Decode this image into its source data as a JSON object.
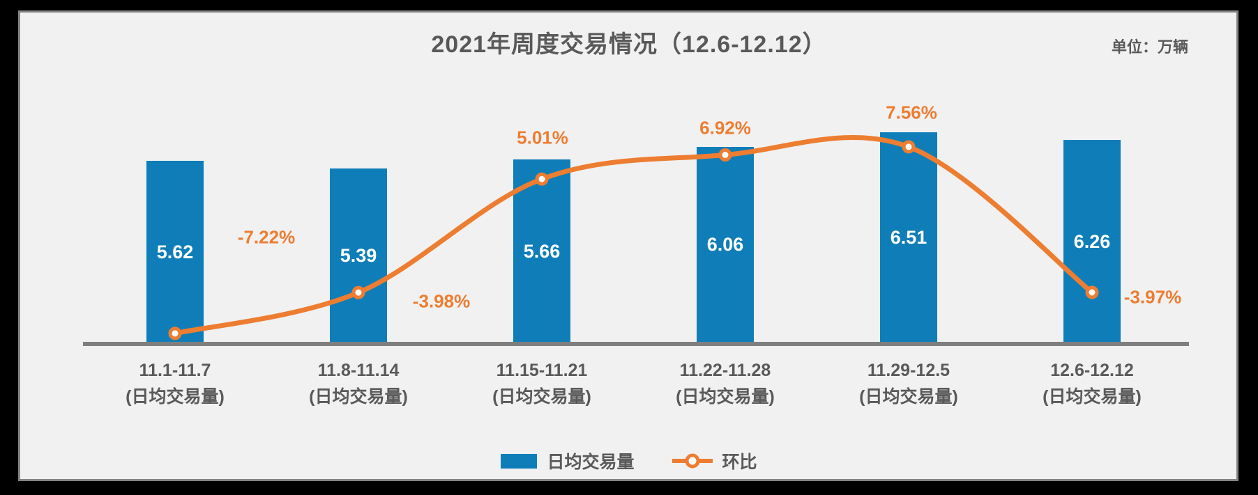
{
  "title": "2021年周度交易情况（12.6-12.12）",
  "unit_label": "单位：万辆",
  "colors": {
    "bar": "#0F7EB8",
    "line": "#ED7D31",
    "text": "#595959",
    "axis": "#7F7F7F",
    "panel_bg": "#F1F1F1",
    "page_bg": "#000000",
    "marker_fill": "#FFFFFF",
    "bar_value_text": "#FFFFFF"
  },
  "legend": {
    "items": [
      {
        "label": "日均交易量",
        "type": "bar"
      },
      {
        "label": "环比",
        "type": "line"
      }
    ]
  },
  "chart_data": {
    "type": "bar+line combo",
    "title": "2021年周度交易情况（12.6-12.12）",
    "unit": "万辆",
    "categories": [
      "11.1-11.7",
      "11.8-11.14",
      "11.15-11.21",
      "11.22-11.28",
      "11.29-12.5",
      "12.6-12.12"
    ],
    "category_sublabel": "(日均交易量)",
    "series": [
      {
        "name": "日均交易量",
        "type": "bar",
        "values": [
          5.62,
          5.39,
          5.66,
          6.06,
          6.51,
          6.26
        ],
        "value_labels": [
          "5.62",
          "5.39",
          "5.66",
          "6.06",
          "6.51",
          "6.26"
        ]
      },
      {
        "name": "环比",
        "type": "line",
        "smooth": true,
        "values_pct": [
          -7.22,
          -3.98,
          5.01,
          6.92,
          7.56,
          -3.97
        ],
        "value_labels": [
          "-7.22%",
          "-3.98%",
          "5.01%",
          "6.92%",
          "7.56%",
          "-3.97%"
        ]
      }
    ],
    "grid": false,
    "x_axis_line": true,
    "y_axis_visible": false,
    "legend_position": "bottom"
  }
}
